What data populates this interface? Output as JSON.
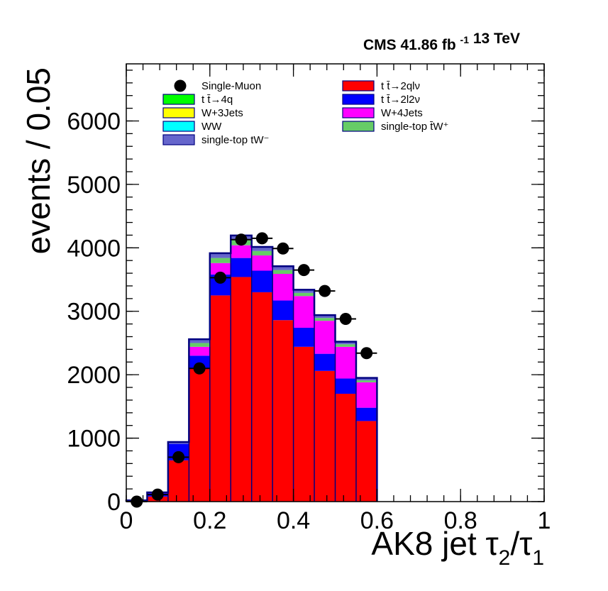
{
  "header": {
    "experiment": "CMS",
    "lumi_value": "41.86",
    "lumi_unit": "fb",
    "lumi_unit_sup": "-1",
    "energy": "13 TeV"
  },
  "chart_data": {
    "type": "bar",
    "stacked": true,
    "title": "",
    "xlabel": "AK8 jet τ2/τ1",
    "xlabel_parts": {
      "prefix": "AK8 jet ",
      "num": "τ",
      "num_sub": "2",
      "den": "τ",
      "den_sub": "1",
      "sep": "/"
    },
    "ylabel": "events / 0.05",
    "xlim": [
      0,
      1
    ],
    "ylim": [
      0,
      6900
    ],
    "x_ticks": [
      0,
      0.2,
      0.4,
      0.6,
      0.8,
      1
    ],
    "x_tick_labels": [
      "0",
      "0.2",
      "0.4",
      "0.6",
      "0.8",
      "1"
    ],
    "y_ticks": [
      0,
      1000,
      2000,
      3000,
      4000,
      5000,
      6000
    ],
    "y_tick_labels": [
      "0",
      "1000",
      "2000",
      "3000",
      "4000",
      "5000",
      "6000"
    ],
    "bin_edges": [
      0,
      0.05,
      0.1,
      0.15,
      0.2,
      0.25,
      0.3,
      0.35,
      0.4,
      0.45,
      0.5,
      0.55,
      0.6
    ],
    "grid": false,
    "legend_position": "top",
    "series": [
      {
        "name": "t t̄→2qlν",
        "color": "#ff0000",
        "values": [
          10,
          80,
          650,
          2100,
          3250,
          3540,
          3300,
          2860,
          2440,
          2060,
          1700,
          1270
        ]
      },
      {
        "name": "t t̄→2l2ν",
        "color": "#0000ff",
        "values": [
          8,
          50,
          260,
          200,
          330,
          300,
          340,
          310,
          300,
          270,
          240,
          210
        ]
      },
      {
        "name": "W+4Jets",
        "color": "#ff00ff",
        "values": [
          2,
          10,
          0,
          140,
          180,
          200,
          240,
          420,
          500,
          520,
          500,
          400
        ]
      },
      {
        "name": "single-top t̄W⁺",
        "color": "#66cc66",
        "values": [
          0,
          0,
          0,
          60,
          80,
          80,
          70,
          60,
          50,
          45,
          40,
          30
        ]
      },
      {
        "name": "single-top tW⁻",
        "color": "#6666cc",
        "values": [
          0,
          5,
          30,
          60,
          75,
          75,
          65,
          60,
          50,
          45,
          40,
          40
        ]
      },
      {
        "name": "t t̄→4q",
        "color": "#00ff00",
        "values": [
          0,
          0,
          0,
          0,
          0,
          0,
          0,
          0,
          0,
          0,
          0,
          0
        ]
      },
      {
        "name": "W+3Jets",
        "color": "#ffff00",
        "values": [
          0,
          0,
          0,
          0,
          0,
          0,
          0,
          0,
          0,
          0,
          0,
          0
        ]
      },
      {
        "name": "WW",
        "color": "#00ffff",
        "values": [
          0,
          0,
          0,
          0,
          0,
          0,
          0,
          0,
          0,
          0,
          0,
          0
        ]
      }
    ],
    "data_points": {
      "name": "Single-Muon",
      "color": "#000000",
      "x": [
        0.025,
        0.075,
        0.125,
        0.175,
        0.225,
        0.275,
        0.325,
        0.375,
        0.425,
        0.475,
        0.525,
        0.575
      ],
      "y": [
        0,
        110,
        700,
        2100,
        3530,
        4130,
        4150,
        3990,
        3650,
        3320,
        2880,
        2340
      ]
    },
    "legend": [
      {
        "label": "Single-Muon",
        "marker": "point",
        "color": "#000000"
      },
      {
        "label": "t t̄→2qlν",
        "marker": "box",
        "color": "#ff0000"
      },
      {
        "label": "t t̄→4q",
        "marker": "box",
        "color": "#00ff00"
      },
      {
        "label": "t t̄→2l2ν",
        "marker": "box",
        "color": "#0000ff"
      },
      {
        "label": "W+3Jets",
        "marker": "box",
        "color": "#ffff00"
      },
      {
        "label": "W+4Jets",
        "marker": "box",
        "color": "#ff00ff"
      },
      {
        "label": "WW",
        "marker": "box",
        "color": "#00ffff"
      },
      {
        "label": "single-top t̄W⁺",
        "marker": "box",
        "color": "#66cc66"
      },
      {
        "label": "single-top tW⁻",
        "marker": "box",
        "color": "#6666cc"
      }
    ],
    "outline_color": "#000080"
  }
}
